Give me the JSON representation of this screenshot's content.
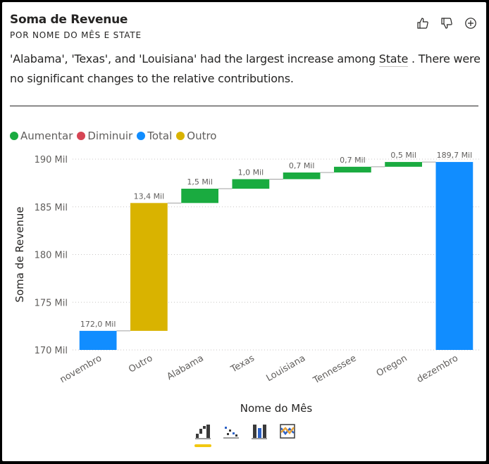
{
  "header": {
    "title": "Soma de Revenue",
    "subtitle": "POR NOME DO MÊS E STATE",
    "actions": [
      {
        "icon": "thumbs-up-icon"
      },
      {
        "icon": "thumbs-down-icon"
      },
      {
        "icon": "add-icon"
      }
    ]
  },
  "summary": {
    "text_before": "'Alabama', 'Texas', and 'Louisiana' had the largest increase among ",
    "field": "State",
    "text_after": " . There were no significant changes to the relative contributions."
  },
  "legend": [
    {
      "label": "Aumentar",
      "color": "#1aab40"
    },
    {
      "label": "Diminuir",
      "color": "#d64554"
    },
    {
      "label": "Total",
      "color": "#118dff"
    },
    {
      "label": "Outro",
      "color": "#d9b300"
    }
  ],
  "chart_data": {
    "type": "waterfall",
    "categories": [
      "novembro",
      "Outro",
      "Alabama",
      "Texas",
      "Louisiana",
      "Tennessee",
      "Oregon",
      "dezembro"
    ],
    "steps": [
      {
        "category": "novembro",
        "kind": "total",
        "start": 170.0,
        "end": 172.0,
        "label": "172,0 Mil"
      },
      {
        "category": "Outro",
        "kind": "other",
        "start": 172.0,
        "end": 185.4,
        "label": "13,4 Mil"
      },
      {
        "category": "Alabama",
        "kind": "increase",
        "start": 185.4,
        "end": 186.9,
        "label": "1,5 Mil"
      },
      {
        "category": "Texas",
        "kind": "increase",
        "start": 186.9,
        "end": 187.9,
        "label": "1,0 Mil"
      },
      {
        "category": "Louisiana",
        "kind": "increase",
        "start": 187.9,
        "end": 188.6,
        "label": "0,7 Mil"
      },
      {
        "category": "Tennessee",
        "kind": "increase",
        "start": 188.6,
        "end": 189.2,
        "label": "0,7 Mil"
      },
      {
        "category": "Oregon",
        "kind": "increase",
        "start": 189.2,
        "end": 189.7,
        "label": "0,5 Mil"
      },
      {
        "category": "dezembro",
        "kind": "total",
        "start": 170.0,
        "end": 189.7,
        "label": "189,7 Mil"
      }
    ],
    "y_ticks": [
      {
        "value": 170,
        "label": "170 Mil"
      },
      {
        "value": 175,
        "label": "175 Mil"
      },
      {
        "value": 180,
        "label": "180 Mil"
      },
      {
        "value": 185,
        "label": "185 Mil"
      },
      {
        "value": 190,
        "label": "190 Mil"
      }
    ],
    "ylim": [
      170,
      190
    ],
    "xlabel": "Nome do Mês",
    "ylabel": "Soma de Revenue",
    "grid": true,
    "legend_position": "top-left",
    "colors": {
      "total": "#118dff",
      "other": "#d9b300",
      "increase": "#1aab40",
      "decrease": "#d64554"
    }
  },
  "visual_variants": [
    {
      "icon": "waterfall-chart-icon",
      "active": true
    },
    {
      "icon": "scatter-chart-icon",
      "active": false
    },
    {
      "icon": "column-chart-icon",
      "active": false
    },
    {
      "icon": "ribbon-chart-icon",
      "active": false
    }
  ]
}
